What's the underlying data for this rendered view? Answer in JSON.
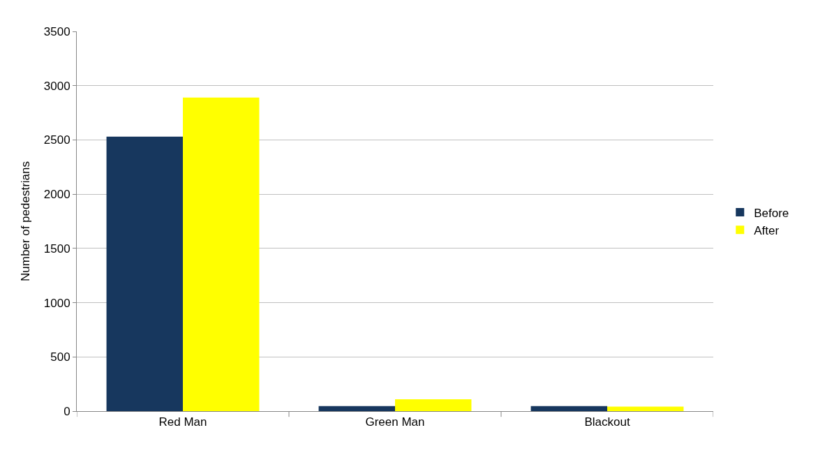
{
  "chart_data": {
    "type": "bar",
    "ylabel": "Number of pedestrians",
    "categories": [
      "Red Man",
      "Green Man",
      "Blackout"
    ],
    "series": [
      {
        "name": "Before",
        "color": "#17375e",
        "values": [
          2530,
          47,
          47
        ]
      },
      {
        "name": "After",
        "color": "#ffff00",
        "values": [
          2890,
          110,
          42
        ]
      }
    ],
    "ylim": [
      0,
      3500
    ],
    "yticks": [
      0,
      500,
      1000,
      1500,
      2000,
      2500,
      3000,
      3500
    ],
    "grid": "y",
    "legend": "right"
  }
}
